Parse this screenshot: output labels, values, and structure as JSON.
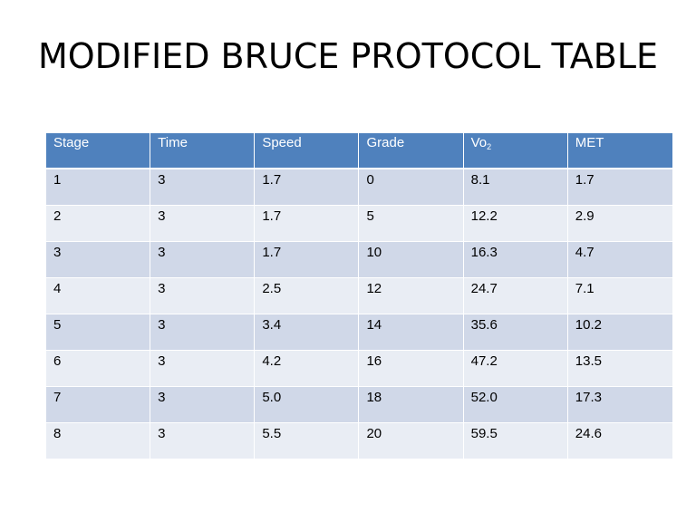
{
  "title": "MODIFIED BRUCE PROTOCOL TABLE",
  "table": {
    "headers": [
      "Stage",
      "Time",
      "Speed",
      "Grade",
      "Vo",
      "MET"
    ],
    "vo2_subscript": "2",
    "rows": [
      [
        "1",
        "3",
        "1.7",
        "0",
        "8.1",
        "1.7"
      ],
      [
        "2",
        "3",
        "1.7",
        "5",
        "12.2",
        "2.9"
      ],
      [
        "3",
        "3",
        "1.7",
        "10",
        "16.3",
        "4.7"
      ],
      [
        "4",
        "3",
        "2.5",
        "12",
        "24.7",
        "7.1"
      ],
      [
        "5",
        "3",
        "3.4",
        "14",
        "35.6",
        "10.2"
      ],
      [
        "6",
        "3",
        "4.2",
        "16",
        "47.2",
        "13.5"
      ],
      [
        "7",
        "3",
        "5.0",
        "18",
        "52.0",
        "17.3"
      ],
      [
        "8",
        "3",
        "5.5",
        "20",
        "59.5",
        "24.6"
      ]
    ]
  },
  "colors": {
    "header_bg": "#4f81bd",
    "row_odd_bg": "#d0d8e8",
    "row_even_bg": "#e9edf4",
    "header_text": "#ffffff"
  }
}
